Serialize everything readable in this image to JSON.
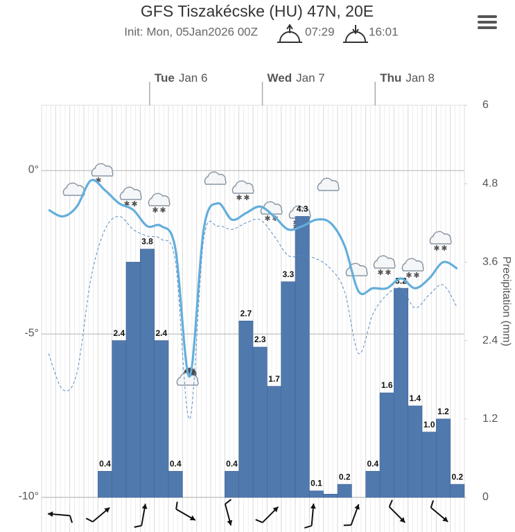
{
  "header": {
    "title": "GFS Tiszakécske (HU) 47N, 20E",
    "init": "Init: Mon, 05Jan2026 00Z",
    "sunrise": "07:29",
    "sunset": "16:01"
  },
  "chart_data": {
    "type": "bar",
    "days": [
      {
        "weekday": "Tue",
        "date": "Jan 6"
      },
      {
        "weekday": "Wed",
        "date": "Jan 7"
      },
      {
        "weekday": "Thu",
        "date": "Jan 8"
      }
    ],
    "categories": [
      null,
      null,
      null,
      null,
      null,
      null,
      null,
      null,
      null,
      null,
      null,
      null,
      null,
      null,
      null,
      null,
      null,
      null,
      null,
      null,
      null,
      null,
      null,
      null,
      null,
      null,
      null,
      null,
      null,
      null
    ],
    "ylim": [
      -10,
      2
    ],
    "yticks": [
      {
        "value": 0,
        "label": "0°"
      },
      {
        "value": -5,
        "label": "-5°"
      },
      {
        "value": -10,
        "label": "-10°"
      }
    ],
    "y2lim": [
      0,
      6
    ],
    "y2ticks": [
      0,
      1.2,
      2.4,
      3.6,
      4.8,
      6
    ],
    "y2label": "Precipitation (mm)",
    "grid": true,
    "series": [
      {
        "type": "bar",
        "axis": "y2",
        "color": "#5079ae",
        "values": [
          null,
          null,
          null,
          null,
          0.4,
          2.4,
          3.6,
          3.8,
          2.4,
          0.4,
          null,
          null,
          null,
          0.4,
          2.7,
          2.3,
          1.7,
          3.3,
          4.3,
          0.1,
          0.05,
          0.2,
          null,
          0.4,
          1.6,
          3.2,
          1.4,
          1.0,
          1.2,
          0.2
        ],
        "value_labels": [
          null,
          null,
          null,
          null,
          "0.4",
          "2.4",
          null,
          "3.8",
          "2.4",
          "0.4",
          null,
          null,
          null,
          "0.4",
          "2.7",
          "2.3",
          "1.7",
          "3.3",
          "4.3",
          "0.1",
          null,
          "0.2",
          null,
          "0.4",
          "1.6",
          "3.2",
          "1.4",
          "1.0",
          "1.2",
          "0.2"
        ]
      },
      {
        "type": "line",
        "color": "#63aedb",
        "dashed": false,
        "values": [
          -1.2,
          -1.4,
          -1.1,
          -0.3,
          -0.6,
          -1.0,
          -1.2,
          -1.7,
          -1.7,
          -2.4,
          -6.3,
          -1.8,
          -1.0,
          -1.5,
          -1.3,
          -1.1,
          -1.4,
          -1.8,
          -1.7,
          -1.5,
          -1.6,
          -2.3,
          -3.7,
          -3.6,
          -3.6,
          -3.3,
          -3.6,
          -3.3,
          -2.8,
          -3.0
        ]
      },
      {
        "type": "line",
        "color": "#5a8cc4",
        "dashed": true,
        "values": [
          -5.6,
          -6.7,
          -6.2,
          -3.3,
          -1.8,
          -1.4,
          -1.8,
          -2.0,
          -2.1,
          -2.8,
          -7.6,
          -2.1,
          -1.7,
          -1.8,
          -1.6,
          -1.5,
          -2.0,
          -2.6,
          -2.6,
          -2.7,
          -3.0,
          -3.7,
          -5.6,
          -4.4,
          -3.8,
          -3.6,
          -4.2,
          -3.8,
          -3.5,
          -4.2
        ]
      }
    ]
  }
}
